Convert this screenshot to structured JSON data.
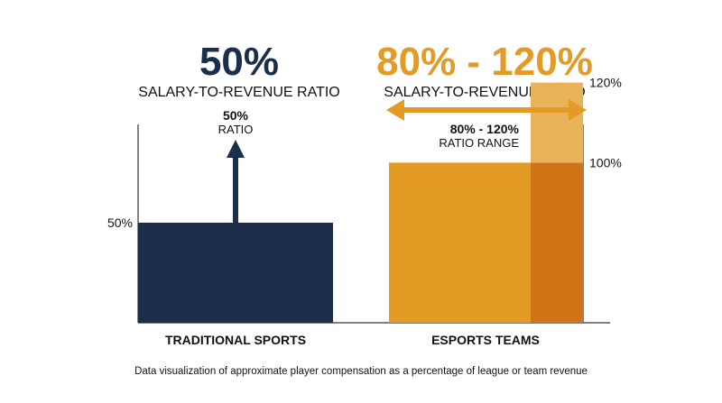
{
  "chart_data": {
    "type": "bar",
    "categories": [
      "TRADITIONAL SPORTS",
      "ESPORTS TEAMS"
    ],
    "traditional": {
      "value": 50,
      "headline": "50%",
      "subtitle": "SALARY-TO-REVENUE RATIO",
      "annotation_value": "50%",
      "annotation_label": "RATIO",
      "axis_tick": "50%"
    },
    "esports": {
      "range": [
        80,
        120
      ],
      "headline": "80% - 120%",
      "subtitle": "SALARY-TO-REVENUE RATIO",
      "annotation_value": "80% - 120%",
      "annotation_label": "RATIO RANGE",
      "tick_low": "100%",
      "tick_high": "120%"
    },
    "caption": "Data visualization of approximate player compensation as a percentage of league or team revenue",
    "colors": {
      "navy": "#1b2e4b",
      "orange": "#e49b26",
      "orange_dark": "#cf7417",
      "orange_light": "#e9b359",
      "axis": "#333333"
    }
  }
}
